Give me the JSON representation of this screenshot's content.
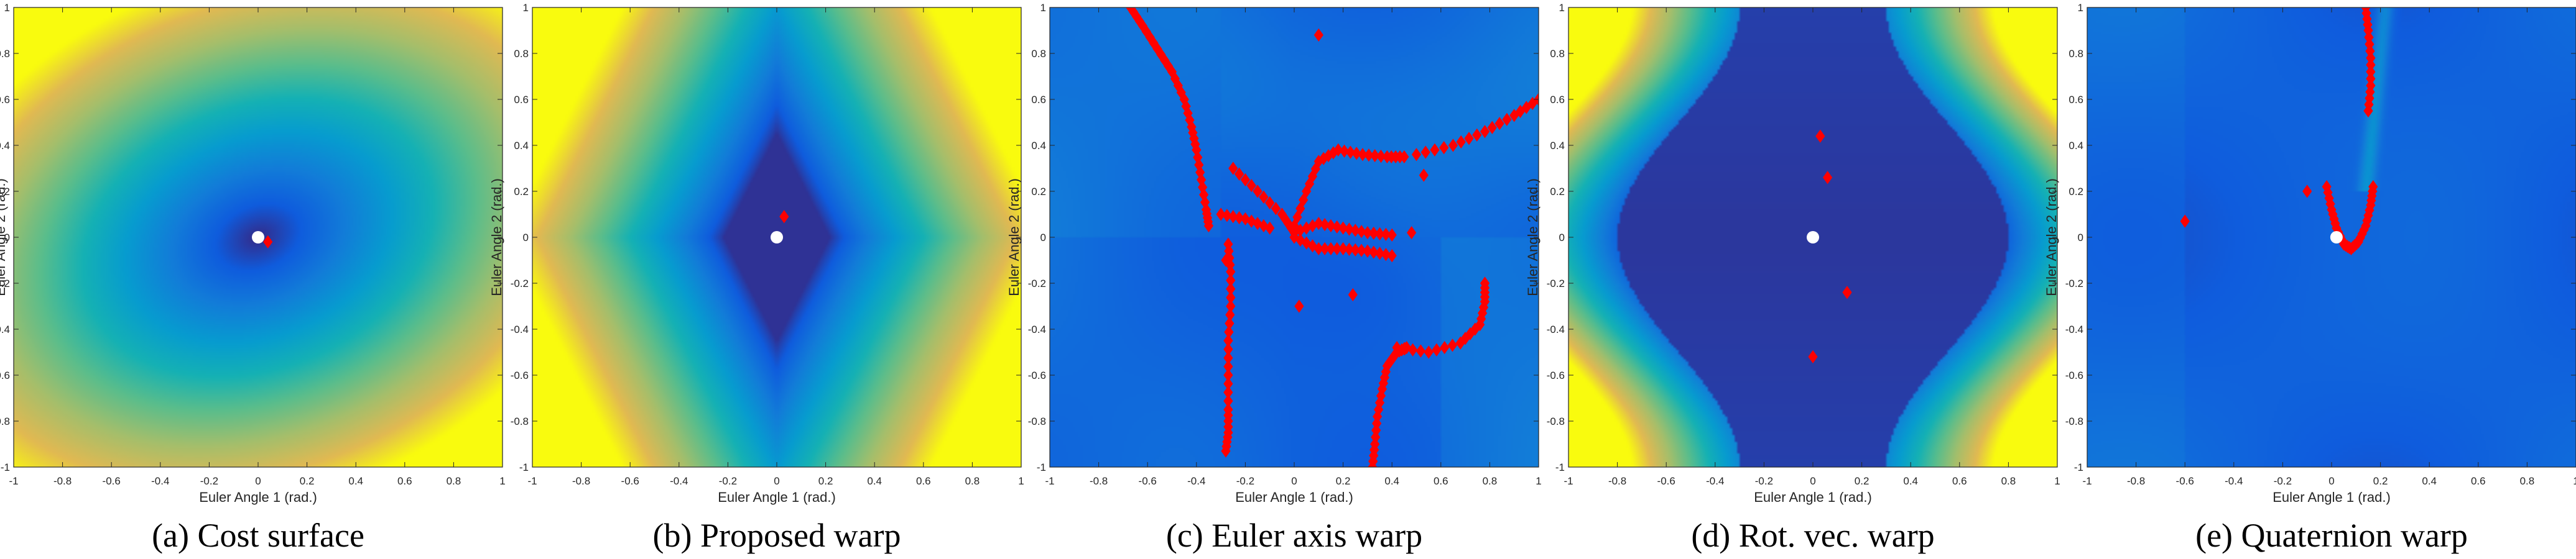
{
  "chart_data": [
    {
      "type": "heatmap",
      "caption": "(a) Cost surface",
      "xlabel": "Euler Angle 1 (rad.)",
      "ylabel": "Euler Angle 2 (rad.)",
      "xlim": [
        -1,
        1
      ],
      "ylim": [
        -1,
        1
      ],
      "xticks": [
        "-1",
        "-0.8",
        "-0.6",
        "-0.4",
        "-0.2",
        "0",
        "0.2",
        "0.4",
        "0.6",
        "0.8",
        "1"
      ],
      "yticks": [
        "-1",
        "-0.8",
        "-0.6",
        "-0.4",
        "-0.2",
        "0",
        "0.2",
        "0.4",
        "0.6",
        "0.8",
        "1"
      ],
      "surface": "cost",
      "true_point": {
        "x": 0.0,
        "y": 0.0
      },
      "estimates": [
        {
          "x": 0.04,
          "y": -0.02
        }
      ]
    },
    {
      "type": "heatmap",
      "caption": "(b) Proposed warp",
      "xlabel": "Euler Angle 1 (rad.)",
      "ylabel": "Euler Angle 2 (rad.)",
      "xlim": [
        -1,
        1
      ],
      "ylim": [
        -1,
        1
      ],
      "xticks": [
        "-1",
        "-0.8",
        "-0.6",
        "-0.4",
        "-0.2",
        "0",
        "0.2",
        "0.4",
        "0.6",
        "0.8",
        "1"
      ],
      "yticks": [
        "-1",
        "-0.8",
        "-0.6",
        "-0.4",
        "-0.2",
        "0",
        "0.2",
        "0.4",
        "0.6",
        "0.8",
        "1"
      ],
      "surface": "proposed",
      "true_point": {
        "x": 0.0,
        "y": 0.0
      },
      "estimates": [
        {
          "x": 0.03,
          "y": 0.09
        }
      ]
    },
    {
      "type": "heatmap",
      "caption": "(c) Euler axis warp",
      "xlabel": "Euler Angle 1 (rad.)",
      "ylabel": "Euler Angle 2 (rad.)",
      "xlim": [
        -1,
        1
      ],
      "ylim": [
        -1,
        1
      ],
      "xticks": [
        "-1",
        "-0.8",
        "-0.6",
        "-0.4",
        "-0.2",
        "0",
        "0.2",
        "0.4",
        "0.6",
        "0.8",
        "1"
      ],
      "yticks": [
        "-1",
        "-0.8",
        "-0.6",
        "-0.4",
        "-0.2",
        "0",
        "0.2",
        "0.4",
        "0.6",
        "0.8",
        "1"
      ],
      "surface": "euler",
      "true_point": null,
      "estimates": [],
      "trajectories": [
        [
          [
            -0.67,
            1.0
          ],
          [
            -0.62,
            0.92
          ],
          [
            -0.56,
            0.82
          ],
          [
            -0.5,
            0.72
          ],
          [
            -0.45,
            0.6
          ],
          [
            -0.42,
            0.48
          ],
          [
            -0.4,
            0.38
          ],
          [
            -0.38,
            0.25
          ],
          [
            -0.36,
            0.12
          ],
          [
            -0.35,
            0.05
          ]
        ],
        [
          [
            -0.27,
            -0.03
          ],
          [
            -0.26,
            -0.15
          ],
          [
            -0.26,
            -0.3
          ],
          [
            -0.27,
            -0.45
          ],
          [
            -0.27,
            -0.6
          ],
          [
            -0.27,
            -0.75
          ],
          [
            -0.27,
            -0.85
          ],
          [
            -0.28,
            -0.93
          ]
        ],
        [
          [
            0.0,
            0.05
          ],
          [
            0.05,
            0.2
          ],
          [
            0.1,
            0.33
          ],
          [
            0.18,
            0.38
          ],
          [
            0.28,
            0.36
          ],
          [
            0.38,
            0.35
          ],
          [
            0.45,
            0.35
          ]
        ],
        [
          [
            0.5,
            0.36
          ],
          [
            0.65,
            0.4
          ],
          [
            0.78,
            0.46
          ],
          [
            0.9,
            0.53
          ],
          [
            1.0,
            0.6
          ]
        ],
        [
          [
            -0.25,
            0.3
          ],
          [
            -0.15,
            0.2
          ],
          [
            -0.05,
            0.1
          ],
          [
            0.0,
            0.02
          ],
          [
            0.1,
            0.06
          ],
          [
            0.2,
            0.04
          ],
          [
            0.3,
            0.02
          ],
          [
            0.4,
            0.01
          ]
        ],
        [
          [
            0.42,
            -0.48
          ],
          [
            0.55,
            -0.5
          ],
          [
            0.68,
            -0.46
          ],
          [
            0.76,
            -0.38
          ],
          [
            0.78,
            -0.28
          ],
          [
            0.78,
            -0.2
          ]
        ],
        [
          [
            0.32,
            -1.0
          ],
          [
            0.33,
            -0.9
          ],
          [
            0.34,
            -0.78
          ],
          [
            0.36,
            -0.66
          ],
          [
            0.38,
            -0.56
          ],
          [
            0.42,
            -0.5
          ],
          [
            0.46,
            -0.48
          ]
        ],
        [
          [
            0.0,
            0.0
          ],
          [
            0.1,
            -0.05
          ],
          [
            0.2,
            -0.05
          ],
          [
            0.3,
            -0.06
          ],
          [
            0.4,
            -0.08
          ]
        ],
        [
          [
            -0.3,
            0.1
          ],
          [
            -0.2,
            0.08
          ],
          [
            -0.1,
            0.04
          ]
        ]
      ],
      "isolated": [
        [
          0.1,
          0.88
        ],
        [
          -0.28,
          -0.1
        ],
        [
          0.02,
          -0.3
        ],
        [
          0.24,
          -0.25
        ],
        [
          0.53,
          0.27
        ],
        [
          0.48,
          0.02
        ]
      ]
    },
    {
      "type": "heatmap",
      "caption": "(d) Rot. vec. warp",
      "xlabel": "Euler Angle 1 (rad.)",
      "ylabel": "Euler Angle 2 (rad.)",
      "xlim": [
        -1,
        1
      ],
      "ylim": [
        -1,
        1
      ],
      "xticks": [
        "-1",
        "-0.8",
        "-0.6",
        "-0.4",
        "-0.2",
        "0",
        "0.2",
        "0.4",
        "0.6",
        "0.8",
        "1"
      ],
      "yticks": [
        "-1",
        "-0.8",
        "-0.6",
        "-0.4",
        "-0.2",
        "0",
        "0.2",
        "0.4",
        "0.6",
        "0.8",
        "1"
      ],
      "surface": "rotvec",
      "true_point": {
        "x": 0.0,
        "y": 0.0
      },
      "estimates": [
        {
          "x": 0.03,
          "y": 0.44
        },
        {
          "x": 0.06,
          "y": 0.26
        },
        {
          "x": 0.14,
          "y": -0.24
        },
        {
          "x": 0.0,
          "y": -0.52
        }
      ]
    },
    {
      "type": "heatmap",
      "caption": "(e) Quaternion warp",
      "xlabel": "Euler Angle 1 (rad.)",
      "ylabel": "Euler Angle 2 (rad.)",
      "xlim": [
        -1,
        1
      ],
      "ylim": [
        -1,
        1
      ],
      "xticks": [
        "-1",
        "-0.8",
        "-0.6",
        "-0.4",
        "-0.2",
        "0",
        "0.2",
        "0.4",
        "0.6",
        "0.8",
        "1"
      ],
      "yticks": [
        "-1",
        "-0.8",
        "-0.6",
        "-0.4",
        "-0.2",
        "0",
        "0.2",
        "0.4",
        "0.6",
        "0.8",
        "1"
      ],
      "surface": "quat",
      "true_point": {
        "x": 0.02,
        "y": 0.0
      },
      "estimates": [
        {
          "x": -0.6,
          "y": 0.07
        },
        {
          "x": -0.1,
          "y": 0.2
        }
      ],
      "trajectories": [
        [
          [
            0.14,
            1.0
          ],
          [
            0.15,
            0.9
          ],
          [
            0.16,
            0.78
          ],
          [
            0.16,
            0.66
          ],
          [
            0.15,
            0.55
          ]
        ],
        [
          [
            -0.02,
            0.22
          ],
          [
            0.0,
            0.12
          ],
          [
            0.02,
            0.04
          ],
          [
            0.05,
            -0.03
          ],
          [
            0.08,
            -0.05
          ],
          [
            0.11,
            -0.02
          ],
          [
            0.14,
            0.05
          ],
          [
            0.16,
            0.14
          ],
          [
            0.17,
            0.22
          ]
        ]
      ],
      "isolated": []
    }
  ]
}
